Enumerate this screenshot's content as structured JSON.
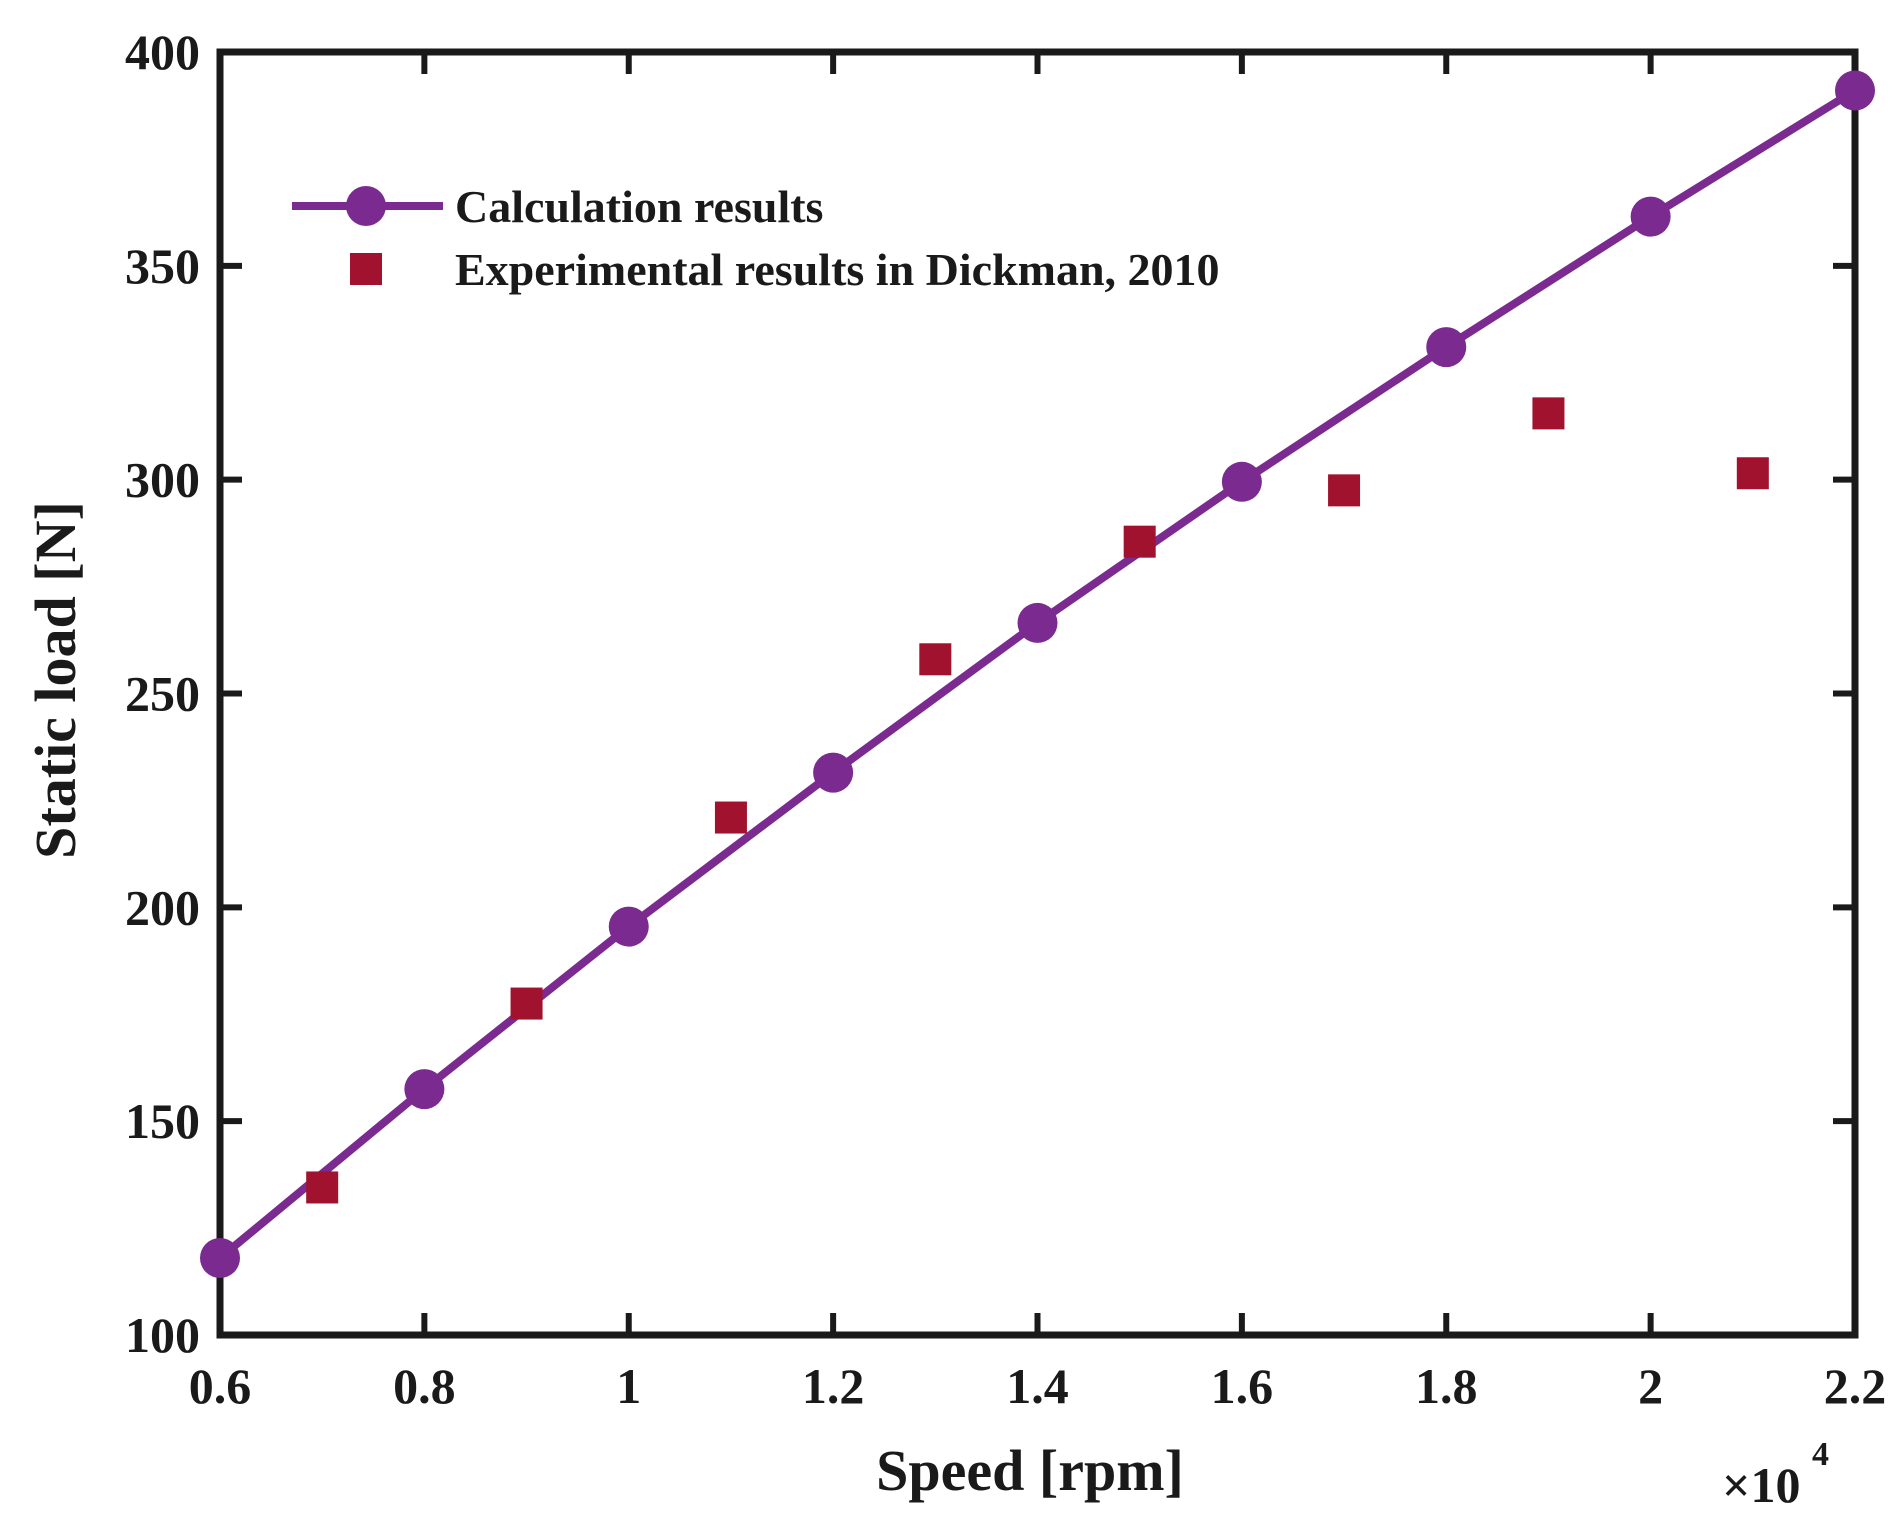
{
  "chart_data": {
    "type": "line",
    "xlabel": "Speed [rpm]",
    "ylabel": "Static load [N]",
    "x_multiplier_base": "×10",
    "x_multiplier_exp": "4",
    "xlim": [
      0.6,
      2.2
    ],
    "ylim": [
      100,
      400
    ],
    "xticks": [
      "0.6",
      "0.8",
      "1",
      "1.2",
      "1.4",
      "1.6",
      "1.8",
      "2",
      "2.2"
    ],
    "yticks": [
      "100",
      "150",
      "200",
      "250",
      "300",
      "350",
      "400"
    ],
    "grid": false,
    "legend_position": "top-left",
    "series": [
      {
        "name": "Calculation results",
        "style": "line-circle",
        "color": "#7B2A90",
        "x": [
          0.6,
          0.8,
          1.0,
          1.2,
          1.4,
          1.6,
          1.8,
          2.0,
          2.2
        ],
        "y": [
          118,
          157.5,
          195.5,
          231.5,
          266.5,
          299.5,
          331,
          361.5,
          391
        ]
      },
      {
        "name": "Experimental results in Dickman, 2010",
        "style": "square",
        "color": "#A0122D",
        "x": [
          0.7,
          0.9,
          1.1,
          1.3,
          1.5,
          1.7,
          1.9,
          2.1
        ],
        "y": [
          134.5,
          177.5,
          221,
          258,
          285.5,
          297.5,
          315.5,
          301.5
        ]
      }
    ]
  }
}
